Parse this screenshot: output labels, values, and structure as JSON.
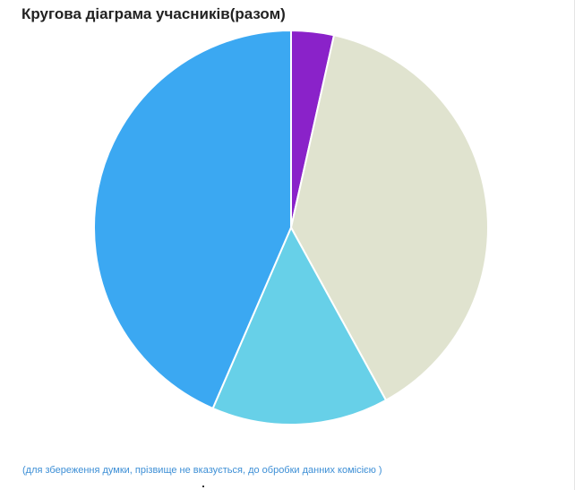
{
  "chart_data": {
    "type": "pie",
    "title": "Кругова діаграма учасників(разом)",
    "start_angle_deg": 0,
    "direction": "clockwise",
    "slices": [
      {
        "value": 3.5,
        "color": "#8a22c9"
      },
      {
        "value": 38.5,
        "color": "#e0e3cf"
      },
      {
        "value": 14.5,
        "color": "#67d0e8"
      },
      {
        "value": 43.5,
        "color": "#3ba8f2"
      }
    ],
    "grid": false,
    "legend": "none"
  },
  "footnote": "(для збереження думки, прізвище не вказується, до обробки данних комісією )"
}
